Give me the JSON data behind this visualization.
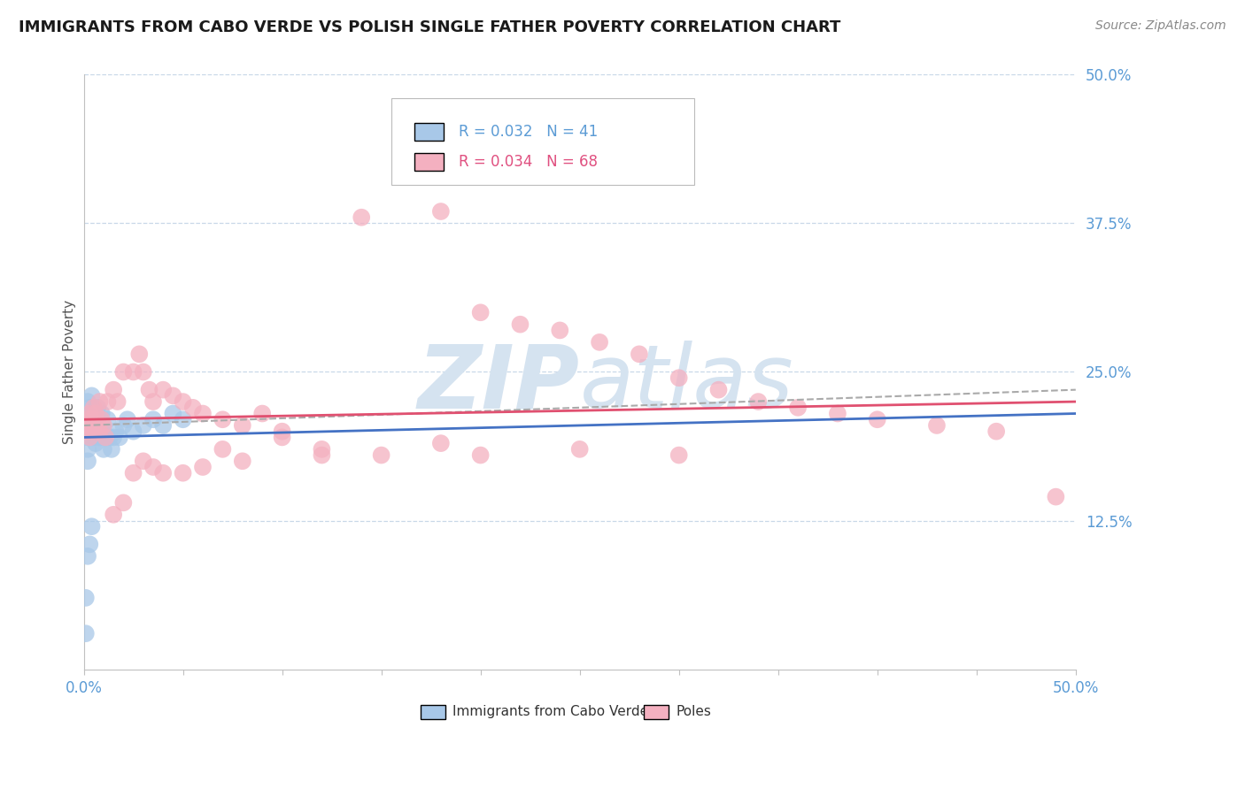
{
  "title": "IMMIGRANTS FROM CABO VERDE VS POLISH SINGLE FATHER POVERTY CORRELATION CHART",
  "source": "Source: ZipAtlas.com",
  "ylabel": "Single Father Poverty",
  "xlim": [
    0,
    0.5
  ],
  "ylim": [
    0,
    0.5
  ],
  "yticks_right": [
    0.125,
    0.25,
    0.375,
    0.5
  ],
  "ytick_labels_right": [
    "12.5%",
    "25.0%",
    "37.5%",
    "50.0%"
  ],
  "color_blue": "#A8C8E8",
  "color_pink": "#F4B0C0",
  "color_blue_line": "#4472C4",
  "color_pink_line": "#E05070",
  "color_dashed": "#AAAAAA",
  "watermark_color": "#D5E3F0",
  "grid_color": "#C8D8E8",
  "tick_color": "#5B9BD5",
  "title_color": "#1A1A1A",
  "source_color": "#888888",
  "blue_x": [
    0.001,
    0.001,
    0.001,
    0.002,
    0.002,
    0.002,
    0.002,
    0.003,
    0.003,
    0.004,
    0.004,
    0.005,
    0.005,
    0.005,
    0.006,
    0.006,
    0.007,
    0.007,
    0.008,
    0.008,
    0.009,
    0.01,
    0.01,
    0.011,
    0.012,
    0.013,
    0.014,
    0.015,
    0.016,
    0.018,
    0.02,
    0.022,
    0.025,
    0.03,
    0.035,
    0.04,
    0.045,
    0.05,
    0.002,
    0.003,
    0.004
  ],
  "blue_y": [
    0.03,
    0.06,
    0.2,
    0.195,
    0.185,
    0.175,
    0.225,
    0.22,
    0.21,
    0.23,
    0.215,
    0.22,
    0.195,
    0.215,
    0.205,
    0.19,
    0.22,
    0.21,
    0.195,
    0.2,
    0.215,
    0.2,
    0.185,
    0.195,
    0.21,
    0.195,
    0.185,
    0.195,
    0.2,
    0.195,
    0.205,
    0.21,
    0.2,
    0.205,
    0.21,
    0.205,
    0.215,
    0.21,
    0.095,
    0.105,
    0.12
  ],
  "pink_x": [
    0.001,
    0.002,
    0.002,
    0.003,
    0.003,
    0.004,
    0.005,
    0.005,
    0.006,
    0.007,
    0.008,
    0.008,
    0.009,
    0.01,
    0.011,
    0.012,
    0.015,
    0.017,
    0.02,
    0.025,
    0.028,
    0.03,
    0.033,
    0.035,
    0.04,
    0.045,
    0.05,
    0.055,
    0.06,
    0.07,
    0.08,
    0.09,
    0.1,
    0.12,
    0.14,
    0.16,
    0.18,
    0.2,
    0.22,
    0.24,
    0.26,
    0.28,
    0.3,
    0.32,
    0.34,
    0.36,
    0.38,
    0.4,
    0.43,
    0.46,
    0.49,
    0.015,
    0.02,
    0.025,
    0.03,
    0.035,
    0.04,
    0.05,
    0.06,
    0.07,
    0.08,
    0.1,
    0.12,
    0.15,
    0.18,
    0.2,
    0.25,
    0.3
  ],
  "pink_y": [
    0.21,
    0.205,
    0.2,
    0.215,
    0.195,
    0.21,
    0.22,
    0.2,
    0.215,
    0.205,
    0.2,
    0.225,
    0.21,
    0.205,
    0.195,
    0.225,
    0.235,
    0.225,
    0.25,
    0.25,
    0.265,
    0.25,
    0.235,
    0.225,
    0.235,
    0.23,
    0.225,
    0.22,
    0.215,
    0.21,
    0.205,
    0.215,
    0.2,
    0.185,
    0.38,
    0.43,
    0.385,
    0.3,
    0.29,
    0.285,
    0.275,
    0.265,
    0.245,
    0.235,
    0.225,
    0.22,
    0.215,
    0.21,
    0.205,
    0.2,
    0.145,
    0.13,
    0.14,
    0.165,
    0.175,
    0.17,
    0.165,
    0.165,
    0.17,
    0.185,
    0.175,
    0.195,
    0.18,
    0.18,
    0.19,
    0.18,
    0.185,
    0.18
  ],
  "blue_line": [
    0.195,
    0.215
  ],
  "pink_line": [
    0.21,
    0.225
  ],
  "dash_line": [
    0.205,
    0.235
  ]
}
